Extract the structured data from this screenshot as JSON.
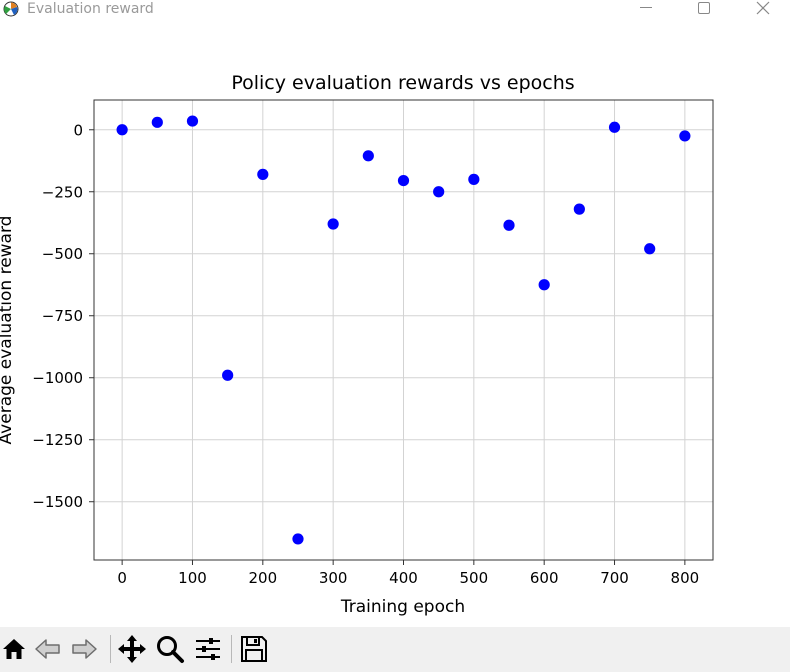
{
  "window": {
    "title": "Evaluation reward",
    "icon": "matplotlib-icon",
    "controls": [
      "minimize-icon",
      "maximize-icon",
      "close-icon"
    ]
  },
  "toolbar": {
    "buttons": [
      "home-icon",
      "back-icon",
      "forward-icon",
      "pan-icon",
      "zoom-icon",
      "configure-subplots-icon",
      "save-icon"
    ]
  },
  "chart_data": {
    "type": "scatter",
    "title": "Policy evaluation rewards vs epochs",
    "xlabel": "Training epoch",
    "ylabel": "Average evaluation reward",
    "xlim": [
      -40,
      840
    ],
    "ylim": [
      -1735,
      120
    ],
    "xticks": [
      0,
      100,
      200,
      300,
      400,
      500,
      600,
      700,
      800
    ],
    "yticks": [
      0,
      -250,
      -500,
      -750,
      -1000,
      -1250,
      -1500
    ],
    "ytick_labels": [
      "0",
      "−250",
      "−500",
      "−750",
      "−1000",
      "−1250",
      "−1500"
    ],
    "grid": true,
    "marker_color": "#0000ff",
    "x": [
      0,
      50,
      100,
      150,
      200,
      250,
      300,
      350,
      400,
      450,
      500,
      550,
      600,
      650,
      700,
      750,
      800
    ],
    "y": [
      0,
      30,
      35,
      -990,
      -180,
      -1650,
      -380,
      -105,
      -205,
      -250,
      -200,
      -385,
      -625,
      -320,
      10,
      -480,
      -25
    ]
  }
}
